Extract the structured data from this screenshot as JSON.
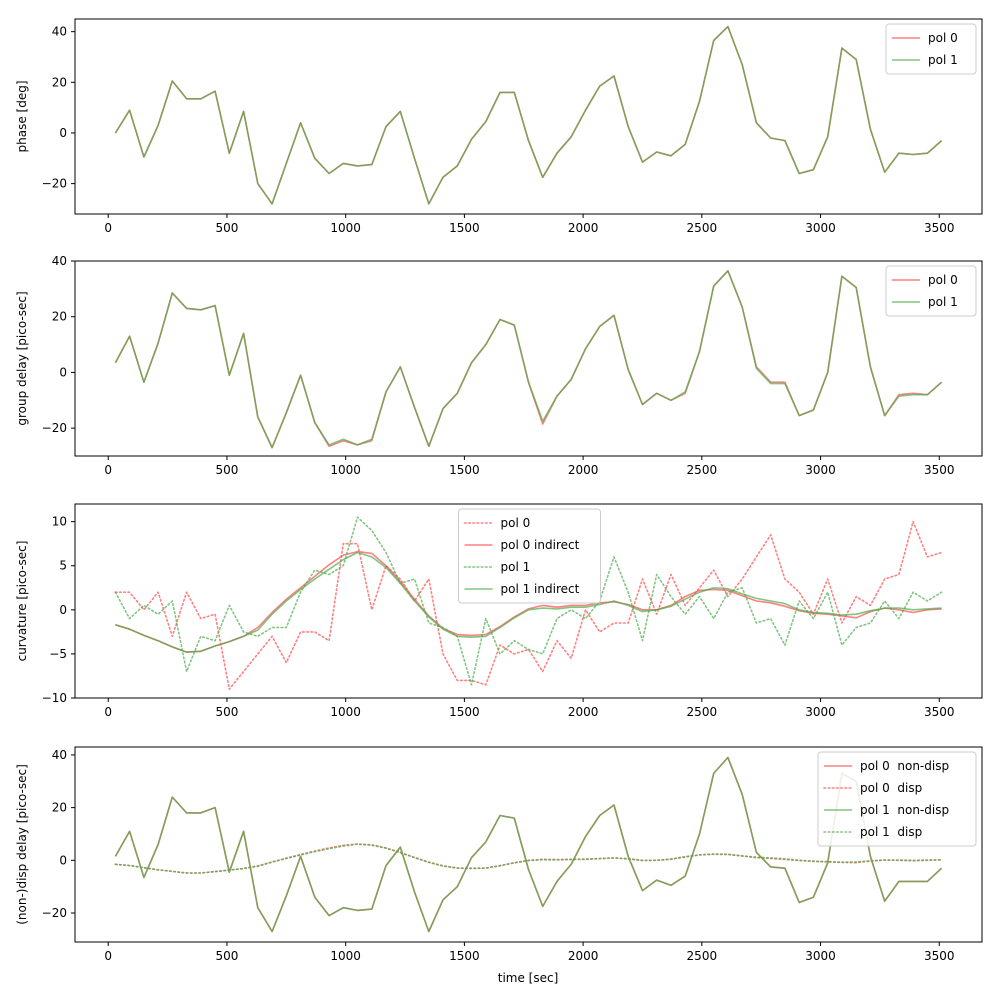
{
  "xlabel": "time [sec]",
  "colors": {
    "pol0": "#ff4a4a",
    "pol1": "#4aac4a",
    "overlap": "#857d45"
  },
  "chart_data": [
    {
      "type": "line",
      "ylabel": "phase [deg]",
      "xlim": [
        -140,
        3680
      ],
      "ylim": [
        -32,
        45
      ],
      "xticks": [
        0,
        500,
        1000,
        1500,
        2000,
        2500,
        3000,
        3500
      ],
      "yticks": [
        -20,
        0,
        20,
        40
      ],
      "legend": "top-right",
      "x": [
        30,
        90,
        150,
        210,
        270,
        330,
        390,
        450,
        510,
        570,
        630,
        690,
        750,
        810,
        870,
        930,
        990,
        1050,
        1110,
        1170,
        1230,
        1290,
        1350,
        1410,
        1470,
        1530,
        1590,
        1650,
        1710,
        1770,
        1830,
        1890,
        1950,
        2010,
        2070,
        2130,
        2190,
        2250,
        2310,
        2370,
        2430,
        2490,
        2550,
        2610,
        2670,
        2730,
        2790,
        2850,
        2910,
        2970,
        3030,
        3090,
        3150,
        3210,
        3270,
        3330,
        3390,
        3450,
        3510
      ],
      "series": [
        {
          "name": "pol 0",
          "style": "solid",
          "color": "#ff4a4a",
          "values": [
            0,
            9,
            -9.5,
            3,
            20.5,
            13.5,
            13.5,
            16.5,
            -8,
            8.5,
            -20,
            -28,
            -12,
            4,
            -10,
            -16,
            -12,
            -13,
            -12.5,
            2.5,
            8.5,
            -10,
            -28,
            -17.5,
            -13,
            -2.5,
            4.5,
            16,
            16,
            -3,
            -17.5,
            -8,
            -1.5,
            9,
            18.5,
            22.5,
            2.5,
            -11.5,
            -7.5,
            -9,
            -4.5,
            12.5,
            36.5,
            42,
            27,
            4,
            -2,
            -3,
            -16,
            -14.5,
            -1.5,
            33.5,
            29,
            1.5,
            -15.5,
            -8,
            -8.5,
            -8,
            -3
          ]
        },
        {
          "name": "pol 1",
          "style": "solid",
          "color": "#4aac4a",
          "values": [
            0,
            9,
            -9.5,
            3,
            20.5,
            13.5,
            13.5,
            16.5,
            -8,
            8.5,
            -20,
            -28,
            -12,
            4,
            -10,
            -16,
            -12,
            -13,
            -12.5,
            2.5,
            8.5,
            -10,
            -28,
            -17.5,
            -13,
            -2.5,
            4.5,
            16,
            16,
            -3,
            -17.5,
            -8,
            -1.5,
            9,
            18.5,
            22.5,
            2.5,
            -11.5,
            -7.5,
            -9,
            -4.5,
            12.5,
            36.5,
            42,
            27,
            4,
            -2,
            -3,
            -16,
            -14.5,
            -1.5,
            33.5,
            29,
            1.5,
            -15.5,
            -8,
            -8.5,
            -8,
            -3
          ]
        }
      ]
    },
    {
      "type": "line",
      "ylabel": "group delay [pico-sec]",
      "xlim": [
        -140,
        3680
      ],
      "ylim": [
        -30,
        40
      ],
      "xticks": [
        0,
        500,
        1000,
        1500,
        2000,
        2500,
        3000,
        3500
      ],
      "yticks": [
        -20,
        0,
        20,
        40
      ],
      "legend": "top-right",
      "x": [
        30,
        90,
        150,
        210,
        270,
        330,
        390,
        450,
        510,
        570,
        630,
        690,
        750,
        810,
        870,
        930,
        990,
        1050,
        1110,
        1170,
        1230,
        1290,
        1350,
        1410,
        1470,
        1530,
        1590,
        1650,
        1710,
        1770,
        1830,
        1890,
        1950,
        2010,
        2070,
        2130,
        2190,
        2250,
        2310,
        2370,
        2430,
        2490,
        2550,
        2610,
        2670,
        2730,
        2790,
        2850,
        2910,
        2970,
        3030,
        3090,
        3150,
        3210,
        3270,
        3330,
        3390,
        3450,
        3510
      ],
      "series": [
        {
          "name": "pol 0",
          "style": "solid",
          "color": "#ff4a4a",
          "values": [
            3.5,
            13,
            -3.5,
            10.5,
            28.5,
            23,
            22.5,
            24,
            -1,
            14,
            -16,
            -27,
            -14.5,
            -1,
            -18,
            -26.5,
            -24.5,
            -26,
            -24.5,
            -7,
            2,
            -12.5,
            -26.5,
            -13,
            -7.5,
            3.5,
            10,
            19,
            17,
            -3.5,
            -18.5,
            -8.5,
            -2.5,
            8.5,
            16.5,
            20.5,
            1,
            -11.5,
            -7.5,
            -10,
            -7.5,
            7.5,
            31,
            36.5,
            23.5,
            2,
            -3.5,
            -3.5,
            -15.5,
            -13.5,
            0,
            34.5,
            30.5,
            2,
            -15.5,
            -8,
            -7.5,
            -8,
            -3.5
          ]
        },
        {
          "name": "pol 1",
          "style": "solid",
          "color": "#4aac4a",
          "values": [
            3.5,
            13,
            -3.5,
            10.5,
            28.5,
            23,
            22.5,
            24,
            -1,
            14,
            -16,
            -27,
            -14.5,
            -1,
            -18,
            -26,
            -24,
            -26,
            -24,
            -7,
            2,
            -12.5,
            -26.5,
            -13,
            -7.5,
            3.5,
            10,
            19,
            17,
            -3.5,
            -17.5,
            -8.5,
            -2.5,
            8.5,
            16.5,
            20.5,
            1,
            -11.5,
            -7.5,
            -10,
            -7,
            7.5,
            31,
            36.5,
            23.5,
            1.5,
            -4,
            -4,
            -15.5,
            -13.5,
            0,
            34.5,
            30.5,
            2,
            -15.5,
            -8.5,
            -8,
            -8,
            -3.5
          ]
        }
      ]
    },
    {
      "type": "line",
      "ylabel": "curvature [pico-sec]",
      "xlim": [
        -140,
        3680
      ],
      "ylim": [
        -10,
        12
      ],
      "xticks": [
        0,
        500,
        1000,
        1500,
        2000,
        2500,
        3000,
        3500
      ],
      "yticks": [
        -10,
        -5,
        0,
        5,
        10
      ],
      "legend": "top-center",
      "x": [
        30,
        90,
        150,
        210,
        270,
        330,
        390,
        450,
        510,
        570,
        630,
        690,
        750,
        810,
        870,
        930,
        990,
        1050,
        1110,
        1170,
        1230,
        1290,
        1350,
        1410,
        1470,
        1530,
        1590,
        1650,
        1710,
        1770,
        1830,
        1890,
        1950,
        2010,
        2070,
        2130,
        2190,
        2250,
        2310,
        2370,
        2430,
        2490,
        2550,
        2610,
        2670,
        2730,
        2790,
        2850,
        2910,
        2970,
        3030,
        3090,
        3150,
        3210,
        3270,
        3330,
        3390,
        3450,
        3510
      ],
      "series": [
        {
          "name": "pol 0",
          "style": "dotted",
          "color": "#ff4a4a",
          "values": [
            2,
            2,
            0,
            2,
            -3,
            2,
            -1,
            -0.5,
            -9,
            -7,
            -5,
            -3,
            -6,
            -2.5,
            -2.5,
            -3.5,
            7.5,
            7.5,
            0,
            5,
            3.5,
            1,
            3.5,
            -5,
            -8,
            -8,
            -8.5,
            -4,
            -5,
            -4.5,
            -7,
            -3.5,
            -5.5,
            0,
            -2.5,
            -1.5,
            -1.5,
            3.5,
            -0.5,
            4,
            0.5,
            2.5,
            4.5,
            1.5,
            3.5,
            6,
            8.5,
            3.5,
            2,
            -0.5,
            3.5,
            -1.5,
            1.5,
            0.5,
            3.5,
            4,
            10,
            6,
            6.5
          ]
        },
        {
          "name": "pol 0 indirect",
          "style": "solid",
          "color": "#ff4a4a",
          "values": [
            -1.7,
            -2.2,
            -2.9,
            -3.5,
            -4.2,
            -4.8,
            -4.7,
            -4.1,
            -3.6,
            -3,
            -2,
            -0.3,
            1.2,
            2.5,
            3.8,
            5.1,
            6.2,
            6.6,
            6.4,
            5,
            3.2,
            1.2,
            -0.7,
            -2.1,
            -2.8,
            -2.9,
            -2.8,
            -1.9,
            -0.8,
            0.1,
            0.5,
            0.3,
            0.5,
            0.5,
            0.8,
            0.9,
            0.6,
            0,
            0,
            0.5,
            1.5,
            2.2,
            2.3,
            2.2,
            1.6,
            1,
            0.8,
            0.4,
            -0.1,
            -0.4,
            -0.5,
            -0.7,
            -0.9,
            -0.2,
            0.2,
            0,
            -0.3,
            0,
            0.1
          ]
        },
        {
          "name": "pol 1",
          "style": "dotted",
          "color": "#4aac4a",
          "values": [
            2,
            -1,
            0.5,
            -0.5,
            1,
            -7,
            -3,
            -3.5,
            0.5,
            -2.5,
            -3,
            -2,
            -2,
            2,
            4.5,
            4,
            5,
            10.5,
            9,
            6.5,
            3,
            3.5,
            -1.5,
            -2,
            -3,
            -8.5,
            -1,
            -5,
            -3.5,
            -4.5,
            -5,
            -1,
            0,
            -1,
            1,
            6,
            2,
            -3.5,
            4,
            1.5,
            -0.5,
            1.5,
            -1,
            2,
            2.5,
            -1.5,
            -1,
            -4,
            1,
            -1,
            2,
            -4,
            -2,
            -1.5,
            1,
            -1,
            2,
            1,
            2
          ]
        },
        {
          "name": "pol 1 indirect",
          "style": "solid",
          "color": "#4aac4a",
          "values": [
            -1.7,
            -2.2,
            -2.9,
            -3.5,
            -4.2,
            -4.8,
            -4.7,
            -4.1,
            -3.6,
            -3,
            -2.3,
            -0.5,
            1,
            2.3,
            3.5,
            4.6,
            5.7,
            6.5,
            6,
            4.8,
            3,
            1,
            -0.8,
            -2.2,
            -3,
            -3.1,
            -3,
            -2,
            -0.9,
            0,
            0.2,
            0.1,
            0.3,
            0.3,
            0.6,
            1,
            0.5,
            -0.2,
            0,
            0.4,
            1.2,
            2,
            2.5,
            2.4,
            1.8,
            1.3,
            1,
            0.7,
            0,
            -0.3,
            -0.4,
            -0.6,
            -0.5,
            -0.1,
            0.2,
            0.2,
            0,
            0.1,
            0.2
          ]
        }
      ]
    },
    {
      "type": "line",
      "ylabel": "(non-)disp delay [pico-sec]",
      "xlim": [
        -140,
        3680
      ],
      "ylim": [
        -31,
        43
      ],
      "xticks": [
        0,
        500,
        1000,
        1500,
        2000,
        2500,
        3000,
        3500
      ],
      "yticks": [
        -20,
        0,
        20,
        40
      ],
      "legend": "top-right",
      "x": [
        30,
        90,
        150,
        210,
        270,
        330,
        390,
        450,
        510,
        570,
        630,
        690,
        750,
        810,
        870,
        930,
        990,
        1050,
        1110,
        1170,
        1230,
        1290,
        1350,
        1410,
        1470,
        1530,
        1590,
        1650,
        1710,
        1770,
        1830,
        1890,
        1950,
        2010,
        2070,
        2130,
        2190,
        2250,
        2310,
        2370,
        2430,
        2490,
        2550,
        2610,
        2670,
        2730,
        2790,
        2850,
        2910,
        2970,
        3030,
        3090,
        3150,
        3210,
        3270,
        3330,
        3390,
        3450,
        3510
      ],
      "series": [
        {
          "name": "pol 0  non-disp",
          "style": "solid",
          "color": "#ff4a4a",
          "values": [
            1.5,
            11,
            -6.5,
            6,
            24,
            18,
            18,
            20,
            -4.5,
            11,
            -18,
            -27,
            -13.5,
            1.5,
            -14,
            -21,
            -18,
            -19,
            -18.5,
            -2,
            5,
            -12,
            -27,
            -15,
            -10,
            1,
            7,
            17,
            16,
            -3.5,
            -17.5,
            -8,
            -1.5,
            9,
            17,
            21,
            1.5,
            -11.5,
            -7.5,
            -9.5,
            -6,
            10,
            33,
            39,
            25,
            3,
            -2.5,
            -3,
            -16,
            -14,
            -1,
            33,
            30,
            1.5,
            -15.5,
            -8,
            -8,
            -8,
            -3
          ]
        },
        {
          "name": "pol 0  disp",
          "style": "dotted",
          "color": "#ff4a4a",
          "values": [
            -1.5,
            -2,
            -2.8,
            -3.6,
            -4.2,
            -4.8,
            -4.8,
            -4.3,
            -3.7,
            -3.1,
            -2.1,
            -0.6,
            0.8,
            2.2,
            3.5,
            4.7,
            5.7,
            6.2,
            5.9,
            4.7,
            3,
            1.1,
            -0.7,
            -2.1,
            -2.9,
            -3,
            -2.9,
            -2,
            -0.9,
            0,
            0.4,
            0.3,
            0.4,
            0.5,
            0.7,
            0.9,
            0.6,
            0,
            0,
            0.5,
            1.4,
            2.1,
            2.3,
            2.2,
            1.6,
            1,
            0.7,
            0.3,
            -0.1,
            -0.4,
            -0.6,
            -0.8,
            -0.9,
            -0.3,
            0.1,
            0,
            -0.2,
            0,
            0.2
          ]
        },
        {
          "name": "pol 1  non-disp",
          "style": "solid",
          "color": "#4aac4a",
          "values": [
            1.5,
            11,
            -6.5,
            6,
            24,
            18,
            18,
            20,
            -4.5,
            11,
            -18,
            -27,
            -13.5,
            1.5,
            -14,
            -21,
            -18,
            -19,
            -18.5,
            -2,
            5,
            -12,
            -27,
            -15,
            -10,
            1,
            7,
            17,
            16,
            -3.5,
            -17.5,
            -8,
            -1.5,
            9,
            17,
            21,
            1.5,
            -11.5,
            -7.5,
            -9.5,
            -6,
            10,
            33,
            39,
            25,
            3,
            -2.5,
            -3,
            -16,
            -14,
            -1,
            33,
            30,
            1.5,
            -15.5,
            -8,
            -8,
            -8,
            -3
          ]
        },
        {
          "name": "pol 1  disp",
          "style": "dotted",
          "color": "#4aac4a",
          "values": [
            -1.5,
            -2,
            -2.8,
            -3.6,
            -4.2,
            -4.8,
            -4.8,
            -4.3,
            -3.7,
            -3.1,
            -2.3,
            -0.7,
            0.7,
            2,
            3.3,
            4.4,
            5.4,
            6.1,
            5.7,
            4.6,
            2.9,
            1,
            -0.8,
            -2.2,
            -3,
            -3.1,
            -3,
            -2.1,
            -1,
            -0.1,
            0.2,
            0.1,
            0.3,
            0.3,
            0.6,
            0.9,
            0.5,
            -0.1,
            0,
            0.4,
            1.2,
            2,
            2.4,
            2.3,
            1.7,
            1.2,
            0.9,
            0.6,
            0,
            -0.3,
            -0.5,
            -0.7,
            -0.6,
            -0.2,
            0.1,
            0.1,
            0,
            0.1,
            0.2
          ]
        }
      ]
    }
  ]
}
